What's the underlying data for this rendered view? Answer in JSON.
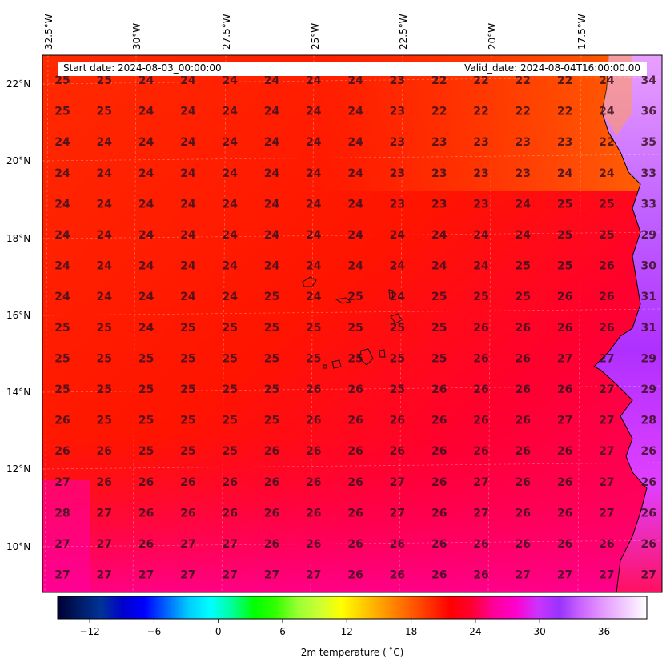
{
  "header": {
    "start_date": "Start date: 2024-08-03_00:00:00",
    "valid_date": "Valid_date: 2024-08-04T16:00:00.00"
  },
  "longitude_labels": [
    "32.5°W",
    "30°W",
    "27.5°W",
    "25°W",
    "22.5°W",
    "20°W",
    "17.5°W"
  ],
  "latitude_labels": [
    "22°N",
    "20°N",
    "18°N",
    "16°N",
    "14°N",
    "12°N",
    "10°N"
  ],
  "temperature_grid": [
    [
      25,
      25,
      24,
      24,
      24,
      24,
      24,
      24,
      23,
      22,
      22,
      22,
      22,
      24,
      34
    ],
    [
      25,
      25,
      24,
      24,
      24,
      24,
      24,
      24,
      23,
      22,
      22,
      22,
      22,
      24,
      36
    ],
    [
      24,
      24,
      24,
      24,
      24,
      24,
      24,
      24,
      23,
      23,
      23,
      23,
      23,
      22,
      35
    ],
    [
      24,
      24,
      24,
      24,
      24,
      24,
      24,
      24,
      23,
      23,
      23,
      23,
      24,
      24,
      33
    ],
    [
      24,
      24,
      24,
      24,
      24,
      24,
      24,
      24,
      23,
      23,
      23,
      24,
      25,
      25,
      33
    ],
    [
      24,
      24,
      24,
      24,
      24,
      24,
      24,
      24,
      24,
      24,
      24,
      24,
      25,
      25,
      29
    ],
    [
      24,
      24,
      24,
      24,
      24,
      24,
      24,
      24,
      24,
      24,
      24,
      25,
      25,
      26,
      30
    ],
    [
      24,
      24,
      24,
      24,
      24,
      25,
      24,
      25,
      24,
      25,
      25,
      25,
      26,
      26,
      31
    ],
    [
      25,
      25,
      24,
      25,
      25,
      25,
      25,
      25,
      25,
      25,
      26,
      26,
      26,
      26,
      31
    ],
    [
      25,
      25,
      25,
      25,
      25,
      25,
      25,
      25,
      25,
      25,
      26,
      26,
      27,
      27,
      29
    ],
    [
      25,
      25,
      25,
      25,
      25,
      25,
      26,
      26,
      25,
      26,
      26,
      26,
      26,
      27,
      29
    ],
    [
      26,
      25,
      25,
      25,
      25,
      25,
      26,
      26,
      26,
      26,
      26,
      26,
      27,
      27,
      28
    ],
    [
      26,
      26,
      25,
      25,
      25,
      26,
      26,
      26,
      26,
      26,
      26,
      26,
      26,
      27,
      26
    ],
    [
      27,
      26,
      26,
      26,
      26,
      26,
      26,
      26,
      27,
      26,
      27,
      26,
      26,
      27,
      26
    ],
    [
      28,
      27,
      26,
      26,
      26,
      26,
      26,
      26,
      27,
      26,
      27,
      26,
      26,
      27,
      26
    ],
    [
      27,
      27,
      26,
      27,
      27,
      26,
      26,
      26,
      26,
      26,
      26,
      26,
      26,
      26,
      26
    ],
    [
      27,
      27,
      27,
      27,
      27,
      27,
      27,
      26,
      26,
      26,
      26,
      27,
      27,
      27,
      27
    ]
  ],
  "colorbar": {
    "title": "2m temperature ( ˚C)",
    "ticks": [
      "−12",
      "−6",
      "0",
      "6",
      "12",
      "18",
      "24",
      "30",
      "36"
    ],
    "tick_values": [
      -12,
      -6,
      0,
      6,
      12,
      18,
      24,
      30,
      36
    ],
    "range": [
      -15,
      40
    ],
    "colors": [
      "#000033",
      "#001a66",
      "#003399",
      "#0000cc",
      "#0000ff",
      "#0066ff",
      "#00ccff",
      "#00ffff",
      "#00ff99",
      "#00ff00",
      "#33ff00",
      "#99ff33",
      "#ccff33",
      "#ffff00",
      "#ffcc00",
      "#ff9900",
      "#ff6600",
      "#ff3300",
      "#ff0000",
      "#ff0033",
      "#ff0099",
      "#ff00cc",
      "#cc33ff",
      "#9933ff",
      "#cc66ff",
      "#e599ff",
      "#f2ccff",
      "#ffffff"
    ]
  },
  "map_colors": {
    "ocean_warm": "#ff1500",
    "ocean_hot": "#ff0060",
    "land_hot": "#b833ff",
    "land_cool": "#ff5a00",
    "coastline": "#000000"
  }
}
